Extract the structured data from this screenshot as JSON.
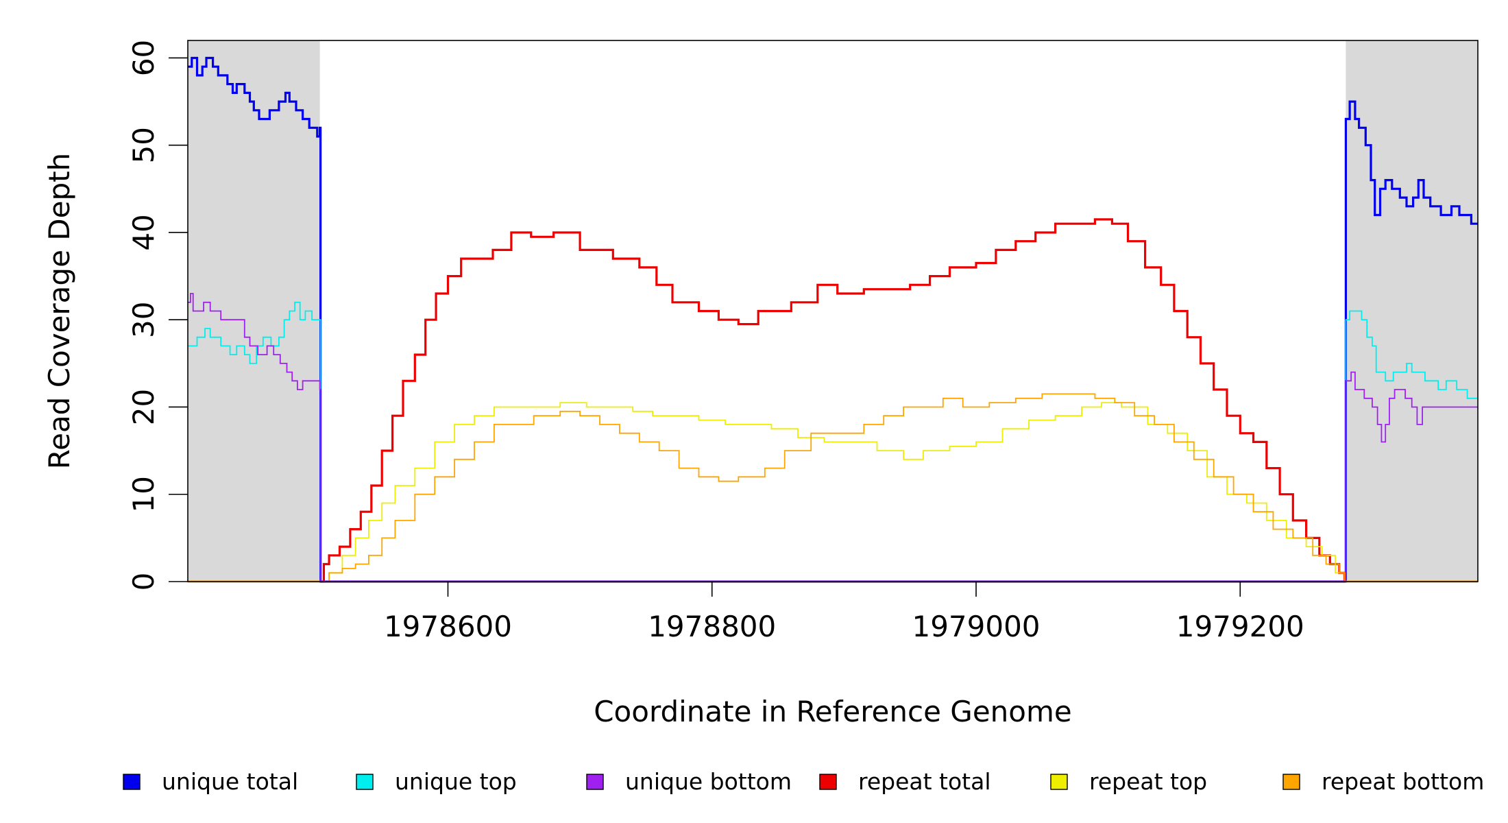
{
  "chart_data": {
    "type": "line",
    "xlabel": "Coordinate in Reference Genome",
    "ylabel": "Read Coverage Depth",
    "xlim": [
      1978403,
      1979380
    ],
    "ylim": [
      0,
      62
    ],
    "x_ticks": [
      1978600,
      1978800,
      1979000,
      1979200
    ],
    "y_ticks": [
      0,
      10,
      20,
      30,
      40,
      50,
      60
    ],
    "grid": false,
    "legend_position": "bottom",
    "shaded_regions": [
      {
        "from": 1978403,
        "to": 1978503,
        "color": "#d9d9d9"
      },
      {
        "from": 1979280,
        "to": 1979380,
        "color": "#d9d9d9"
      }
    ],
    "series": [
      {
        "name": "unique total",
        "color": "#0000ee",
        "step": true,
        "points": [
          [
            1978403,
            59
          ],
          [
            1978406,
            60
          ],
          [
            1978410,
            58
          ],
          [
            1978414,
            59
          ],
          [
            1978417,
            60
          ],
          [
            1978422,
            59
          ],
          [
            1978426,
            58
          ],
          [
            1978433,
            57
          ],
          [
            1978437,
            56
          ],
          [
            1978440,
            57
          ],
          [
            1978446,
            56
          ],
          [
            1978450,
            55
          ],
          [
            1978453,
            54
          ],
          [
            1978457,
            53
          ],
          [
            1978465,
            54
          ],
          [
            1978472,
            55
          ],
          [
            1978477,
            56
          ],
          [
            1978480,
            55
          ],
          [
            1978485,
            54
          ],
          [
            1978490,
            53
          ],
          [
            1978495,
            52
          ],
          [
            1978501,
            51
          ],
          [
            1978503,
            52
          ],
          [
            1978503.5,
            0
          ],
          [
            1979279.5,
            0
          ],
          [
            1979280,
            53
          ],
          [
            1979283,
            55
          ],
          [
            1979287,
            53
          ],
          [
            1979290,
            52
          ],
          [
            1979295,
            50
          ],
          [
            1979299,
            46
          ],
          [
            1979302,
            42
          ],
          [
            1979306,
            45
          ],
          [
            1979310,
            46
          ],
          [
            1979315,
            45
          ],
          [
            1979321,
            44
          ],
          [
            1979326,
            43
          ],
          [
            1979331,
            44
          ],
          [
            1979335,
            46
          ],
          [
            1979339,
            44
          ],
          [
            1979344,
            43
          ],
          [
            1979352,
            42
          ],
          [
            1979360,
            43
          ],
          [
            1979366,
            42
          ],
          [
            1979375,
            41
          ],
          [
            1979380,
            41
          ]
        ]
      },
      {
        "name": "unique top",
        "color": "#00eeee",
        "step": true,
        "points": [
          [
            1978403,
            27
          ],
          [
            1978410,
            28
          ],
          [
            1978416,
            29
          ],
          [
            1978420,
            28
          ],
          [
            1978428,
            27
          ],
          [
            1978435,
            26
          ],
          [
            1978440,
            27
          ],
          [
            1978446,
            26
          ],
          [
            1978450,
            25
          ],
          [
            1978455,
            27
          ],
          [
            1978460,
            28
          ],
          [
            1978466,
            27
          ],
          [
            1978472,
            28
          ],
          [
            1978476,
            30
          ],
          [
            1978480,
            31
          ],
          [
            1978484,
            32
          ],
          [
            1978488,
            30
          ],
          [
            1978492,
            31
          ],
          [
            1978497,
            30
          ],
          [
            1978503,
            30
          ],
          [
            1978503.5,
            0
          ],
          [
            1979279.5,
            0
          ],
          [
            1979280,
            30
          ],
          [
            1979283,
            31
          ],
          [
            1979292,
            30
          ],
          [
            1979296,
            28
          ],
          [
            1979300,
            27
          ],
          [
            1979303,
            24
          ],
          [
            1979310,
            23
          ],
          [
            1979316,
            24
          ],
          [
            1979326,
            25
          ],
          [
            1979330,
            24
          ],
          [
            1979340,
            23
          ],
          [
            1979350,
            22
          ],
          [
            1979356,
            23
          ],
          [
            1979364,
            22
          ],
          [
            1979372,
            21
          ],
          [
            1979380,
            21
          ]
        ]
      },
      {
        "name": "unique bottom",
        "color": "#a020f0",
        "step": true,
        "points": [
          [
            1978403,
            32
          ],
          [
            1978405,
            33
          ],
          [
            1978407,
            31
          ],
          [
            1978415,
            32
          ],
          [
            1978420,
            31
          ],
          [
            1978428,
            30
          ],
          [
            1978434,
            30
          ],
          [
            1978440,
            30
          ],
          [
            1978446,
            28
          ],
          [
            1978450,
            27
          ],
          [
            1978456,
            26
          ],
          [
            1978463,
            27
          ],
          [
            1978468,
            26
          ],
          [
            1978473,
            25
          ],
          [
            1978478,
            24
          ],
          [
            1978482,
            23
          ],
          [
            1978486,
            22
          ],
          [
            1978490,
            23
          ],
          [
            1978497,
            23
          ],
          [
            1978503,
            22
          ],
          [
            1978503.5,
            0
          ],
          [
            1979279.5,
            0
          ],
          [
            1979280,
            23
          ],
          [
            1979284,
            24
          ],
          [
            1979287,
            22
          ],
          [
            1979294,
            21
          ],
          [
            1979300,
            20
          ],
          [
            1979304,
            18
          ],
          [
            1979307,
            16
          ],
          [
            1979310,
            18
          ],
          [
            1979313,
            21
          ],
          [
            1979317,
            22
          ],
          [
            1979325,
            21
          ],
          [
            1979330,
            20
          ],
          [
            1979334,
            18
          ],
          [
            1979338,
            20
          ],
          [
            1979345,
            20
          ],
          [
            1979360,
            20
          ],
          [
            1979380,
            20
          ]
        ]
      },
      {
        "name": "repeat total",
        "color": "#ee0000",
        "step": true,
        "points": [
          [
            1978503,
            0
          ],
          [
            1978506,
            2
          ],
          [
            1978510,
            3
          ],
          [
            1978518,
            4
          ],
          [
            1978526,
            6
          ],
          [
            1978534,
            8
          ],
          [
            1978542,
            11
          ],
          [
            1978550,
            15
          ],
          [
            1978558,
            19
          ],
          [
            1978566,
            23
          ],
          [
            1978575,
            26
          ],
          [
            1978583,
            30
          ],
          [
            1978591,
            33
          ],
          [
            1978600,
            35
          ],
          [
            1978610,
            37
          ],
          [
            1978622,
            37
          ],
          [
            1978634,
            38
          ],
          [
            1978648,
            40
          ],
          [
            1978663,
            39.5
          ],
          [
            1978680,
            40
          ],
          [
            1978700,
            38
          ],
          [
            1978725,
            37
          ],
          [
            1978745,
            36
          ],
          [
            1978758,
            34
          ],
          [
            1978770,
            32
          ],
          [
            1978790,
            31
          ],
          [
            1978805,
            30
          ],
          [
            1978820,
            29.5
          ],
          [
            1978835,
            31
          ],
          [
            1978860,
            32
          ],
          [
            1978880,
            34
          ],
          [
            1978895,
            33
          ],
          [
            1978915,
            33.5
          ],
          [
            1978935,
            33.5
          ],
          [
            1978950,
            34
          ],
          [
            1978965,
            35
          ],
          [
            1978980,
            36
          ],
          [
            1979000,
            36.5
          ],
          [
            1979015,
            38
          ],
          [
            1979030,
            39
          ],
          [
            1979045,
            40
          ],
          [
            1979060,
            41
          ],
          [
            1979075,
            41
          ],
          [
            1979090,
            41.5
          ],
          [
            1979103,
            41
          ],
          [
            1979115,
            39
          ],
          [
            1979128,
            36
          ],
          [
            1979140,
            34
          ],
          [
            1979150,
            31
          ],
          [
            1979160,
            28
          ],
          [
            1979170,
            25
          ],
          [
            1979180,
            22
          ],
          [
            1979190,
            19
          ],
          [
            1979200,
            17
          ],
          [
            1979210,
            16
          ],
          [
            1979220,
            13
          ],
          [
            1979230,
            10
          ],
          [
            1979240,
            7
          ],
          [
            1979250,
            5
          ],
          [
            1979260,
            3
          ],
          [
            1979268,
            2
          ],
          [
            1979275,
            1
          ],
          [
            1979279,
            0
          ]
        ]
      },
      {
        "name": "repeat top",
        "color": "#eeee00",
        "step": true,
        "points": [
          [
            1978503,
            0
          ],
          [
            1978510,
            1
          ],
          [
            1978520,
            3
          ],
          [
            1978530,
            5
          ],
          [
            1978540,
            7
          ],
          [
            1978550,
            9
          ],
          [
            1978560,
            11
          ],
          [
            1978575,
            13
          ],
          [
            1978590,
            16
          ],
          [
            1978605,
            18
          ],
          [
            1978620,
            19
          ],
          [
            1978635,
            20
          ],
          [
            1978650,
            20
          ],
          [
            1978665,
            20
          ],
          [
            1978685,
            20.5
          ],
          [
            1978705,
            20
          ],
          [
            1978720,
            20
          ],
          [
            1978740,
            19.5
          ],
          [
            1978755,
            19
          ],
          [
            1978770,
            19
          ],
          [
            1978790,
            18.5
          ],
          [
            1978810,
            18
          ],
          [
            1978830,
            18
          ],
          [
            1978845,
            17.5
          ],
          [
            1978865,
            16.5
          ],
          [
            1978885,
            16
          ],
          [
            1978905,
            16
          ],
          [
            1978925,
            15
          ],
          [
            1978945,
            14
          ],
          [
            1978960,
            15
          ],
          [
            1978980,
            15.5
          ],
          [
            1979000,
            16
          ],
          [
            1979020,
            17.5
          ],
          [
            1979040,
            18.5
          ],
          [
            1979060,
            19
          ],
          [
            1979080,
            20
          ],
          [
            1979095,
            20.5
          ],
          [
            1979110,
            20
          ],
          [
            1979130,
            18
          ],
          [
            1979145,
            17
          ],
          [
            1979160,
            15
          ],
          [
            1979175,
            12
          ],
          [
            1979190,
            10
          ],
          [
            1979205,
            9
          ],
          [
            1979220,
            7
          ],
          [
            1979235,
            5
          ],
          [
            1979250,
            4
          ],
          [
            1979262,
            3
          ],
          [
            1979272,
            1
          ],
          [
            1979279,
            0
          ]
        ]
      },
      {
        "name": "repeat bottom",
        "color": "#ffa500",
        "step": true,
        "points": [
          [
            1978503,
            0
          ],
          [
            1978510,
            1
          ],
          [
            1978520,
            1.5
          ],
          [
            1978530,
            2
          ],
          [
            1978540,
            3
          ],
          [
            1978550,
            5
          ],
          [
            1978560,
            7
          ],
          [
            1978575,
            10
          ],
          [
            1978590,
            12
          ],
          [
            1978605,
            14
          ],
          [
            1978620,
            16
          ],
          [
            1978635,
            18
          ],
          [
            1978650,
            18
          ],
          [
            1978665,
            19
          ],
          [
            1978685,
            19.5
          ],
          [
            1978700,
            19
          ],
          [
            1978715,
            18
          ],
          [
            1978730,
            17
          ],
          [
            1978745,
            16
          ],
          [
            1978760,
            15
          ],
          [
            1978775,
            13
          ],
          [
            1978790,
            12
          ],
          [
            1978805,
            11.5
          ],
          [
            1978820,
            12
          ],
          [
            1978840,
            13
          ],
          [
            1978855,
            15
          ],
          [
            1978875,
            17
          ],
          [
            1978895,
            17
          ],
          [
            1978915,
            18
          ],
          [
            1978930,
            19
          ],
          [
            1978945,
            20
          ],
          [
            1978960,
            20
          ],
          [
            1978975,
            21
          ],
          [
            1978990,
            20
          ],
          [
            1979010,
            20.5
          ],
          [
            1979030,
            21
          ],
          [
            1979050,
            21.5
          ],
          [
            1979070,
            21.5
          ],
          [
            1979090,
            21
          ],
          [
            1979105,
            20.5
          ],
          [
            1979120,
            19
          ],
          [
            1979135,
            18
          ],
          [
            1979150,
            16
          ],
          [
            1979165,
            14
          ],
          [
            1979180,
            12
          ],
          [
            1979195,
            10
          ],
          [
            1979210,
            8
          ],
          [
            1979225,
            6
          ],
          [
            1979240,
            5
          ],
          [
            1979255,
            3
          ],
          [
            1979265,
            2
          ],
          [
            1979275,
            1
          ],
          [
            1979279,
            0
          ]
        ]
      }
    ],
    "baselines": [
      {
        "color": "#ffa500",
        "y": 0,
        "from": 1978403,
        "to": 1979380
      },
      {
        "color": "#a020f0",
        "y": 0,
        "from": 1978503,
        "to": 1979280
      }
    ]
  }
}
